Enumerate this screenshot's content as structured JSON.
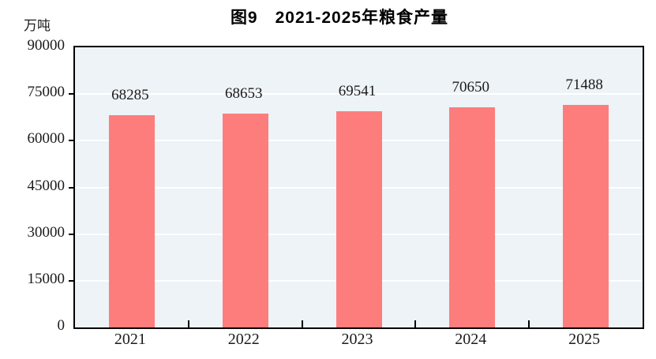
{
  "title": "图9　2021-2025年粮食产量",
  "unit_label": "万吨",
  "colors": {
    "bar": "#fd7d7d",
    "plot_background": "#edf3f7",
    "gridline": "#ffffff",
    "axis": "#000000",
    "text": "#1b1b1b"
  },
  "chart_data": {
    "type": "bar",
    "title": "图9　2021-2025年粮食产量",
    "xlabel": "",
    "ylabel": "万吨",
    "categories": [
      "2021",
      "2022",
      "2023",
      "2024",
      "2025"
    ],
    "values": [
      68285,
      68653,
      69541,
      70650,
      71488
    ],
    "bar_labels": [
      "68285",
      "68653",
      "69541",
      "70650",
      "71488"
    ],
    "ylim": [
      0,
      90000
    ],
    "yticks": [
      0,
      15000,
      30000,
      45000,
      60000,
      75000,
      90000
    ],
    "grid": true,
    "legend_position": "none"
  }
}
